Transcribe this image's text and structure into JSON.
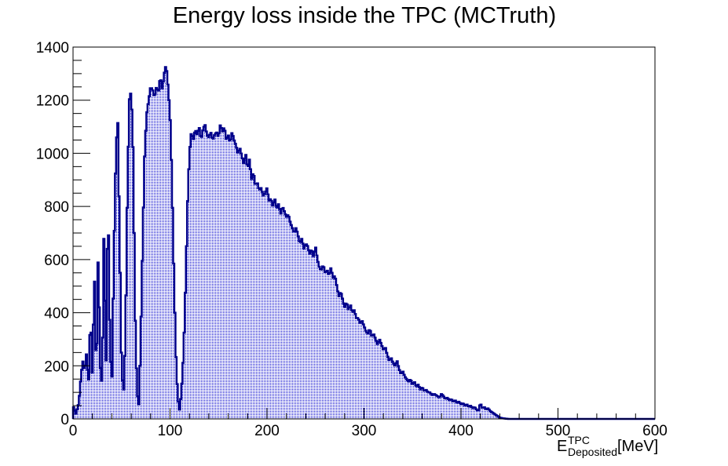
{
  "chart_data": {
    "type": "bar",
    "histogram": true,
    "title": "Energy loss inside the TPC (MCTruth)",
    "xlabel": {
      "main": "E",
      "superscript": "TPC",
      "subscript": "Deposited",
      "unit": "[MeV]"
    },
    "ylabel": "",
    "xlim": [
      0,
      600
    ],
    "ylim": [
      0,
      1400
    ],
    "x_ticks": [
      "0",
      "100",
      "200",
      "300",
      "400",
      "500",
      "600"
    ],
    "y_ticks": [
      "0",
      "200",
      "400",
      "600",
      "800",
      "1000",
      "1200",
      "1400"
    ],
    "bin_width": 1.2,
    "fill_pattern": "dotted",
    "grid": false,
    "legend": "none",
    "colors": {
      "line": "#00008b",
      "fill": "#0000cc"
    },
    "series": [
      {
        "points": [
          [
            0,
            50
          ],
          [
            3,
            20
          ],
          [
            6,
            60
          ],
          [
            8,
            150
          ],
          [
            10,
            220
          ],
          [
            12,
            180
          ],
          [
            14,
            250
          ],
          [
            16,
            120
          ],
          [
            18,
            400
          ],
          [
            20,
            150
          ],
          [
            22,
            560
          ],
          [
            24,
            130
          ],
          [
            26,
            640
          ],
          [
            28,
            200
          ],
          [
            30,
            120
          ],
          [
            32,
            740
          ],
          [
            34,
            150
          ],
          [
            36,
            850
          ],
          [
            38,
            320
          ],
          [
            40,
            110
          ],
          [
            42,
            600
          ],
          [
            44,
            960
          ],
          [
            46,
            1160
          ],
          [
            48,
            700
          ],
          [
            50,
            200
          ],
          [
            52,
            90
          ],
          [
            54,
            300
          ],
          [
            56,
            850
          ],
          [
            58,
            1200
          ],
          [
            60,
            1235
          ],
          [
            62,
            1000
          ],
          [
            64,
            400
          ],
          [
            66,
            100
          ],
          [
            68,
            50
          ],
          [
            70,
            350
          ],
          [
            72,
            700
          ],
          [
            74,
            1020
          ],
          [
            76,
            1150
          ],
          [
            78,
            1200
          ],
          [
            80,
            1250
          ],
          [
            82,
            1240
          ],
          [
            84,
            1210
          ],
          [
            86,
            1250
          ],
          [
            88,
            1230
          ],
          [
            90,
            1290
          ],
          [
            92,
            1240
          ],
          [
            94,
            1300
          ],
          [
            96,
            1335
          ],
          [
            98,
            1250
          ],
          [
            100,
            1150
          ],
          [
            102,
            900
          ],
          [
            104,
            550
          ],
          [
            106,
            250
          ],
          [
            108,
            80
          ],
          [
            110,
            30
          ],
          [
            112,
            120
          ],
          [
            114,
            250
          ],
          [
            116,
            500
          ],
          [
            118,
            800
          ],
          [
            120,
            1000
          ],
          [
            122,
            1080
          ],
          [
            124,
            1050
          ],
          [
            126,
            1090
          ],
          [
            128,
            1070
          ],
          [
            130,
            1100
          ],
          [
            132,
            1050
          ],
          [
            134,
            1090
          ],
          [
            136,
            1110
          ],
          [
            138,
            1070
          ],
          [
            140,
            1060
          ],
          [
            142,
            1080
          ],
          [
            144,
            1050
          ],
          [
            146,
            1070
          ],
          [
            148,
            1080
          ],
          [
            150,
            1060
          ],
          [
            152,
            1110
          ],
          [
            154,
            1080
          ],
          [
            156,
            1100
          ],
          [
            158,
            1050
          ],
          [
            160,
            1070
          ],
          [
            162,
            1040
          ],
          [
            164,
            1080
          ],
          [
            166,
            1050
          ],
          [
            168,
            1030
          ],
          [
            170,
            1000
          ],
          [
            172,
            1020
          ],
          [
            174,
            990
          ],
          [
            176,
            960
          ],
          [
            178,
            1000
          ],
          [
            180,
            940
          ],
          [
            182,
            980
          ],
          [
            184,
            900
          ],
          [
            186,
            930
          ],
          [
            188,
            880
          ],
          [
            190,
            890
          ],
          [
            192,
            860
          ],
          [
            194,
            870
          ],
          [
            196,
            840
          ],
          [
            198,
            850
          ],
          [
            200,
            870
          ],
          [
            202,
            820
          ],
          [
            204,
            830
          ],
          [
            206,
            800
          ],
          [
            208,
            830
          ],
          [
            210,
            790
          ],
          [
            212,
            810
          ],
          [
            214,
            770
          ],
          [
            216,
            800
          ],
          [
            218,
            780
          ],
          [
            220,
            760
          ],
          [
            222,
            770
          ],
          [
            224,
            740
          ],
          [
            226,
            720
          ],
          [
            228,
            700
          ],
          [
            230,
            720
          ],
          [
            232,
            690
          ],
          [
            234,
            660
          ],
          [
            236,
            680
          ],
          [
            238,
            640
          ],
          [
            240,
            660
          ],
          [
            242,
            650
          ],
          [
            244,
            620
          ],
          [
            246,
            640
          ],
          [
            248,
            610
          ],
          [
            250,
            650
          ],
          [
            252,
            600
          ],
          [
            254,
            570
          ],
          [
            256,
            560
          ],
          [
            258,
            580
          ],
          [
            260,
            550
          ],
          [
            262,
            560
          ],
          [
            264,
            540
          ],
          [
            266,
            570
          ],
          [
            268,
            530
          ],
          [
            270,
            540
          ],
          [
            272,
            500
          ],
          [
            274,
            460
          ],
          [
            276,
            480
          ],
          [
            278,
            450
          ],
          [
            280,
            420
          ],
          [
            282,
            440
          ],
          [
            284,
            410
          ],
          [
            286,
            430
          ],
          [
            288,
            400
          ],
          [
            290,
            410
          ],
          [
            292,
            380
          ],
          [
            294,
            380
          ],
          [
            296,
            360
          ],
          [
            298,
            370
          ],
          [
            300,
            350
          ],
          [
            302,
            330
          ],
          [
            304,
            320
          ],
          [
            306,
            340
          ],
          [
            308,
            310
          ],
          [
            310,
            320
          ],
          [
            312,
            300
          ],
          [
            314,
            280
          ],
          [
            316,
            300
          ],
          [
            318,
            280
          ],
          [
            320,
            260
          ],
          [
            322,
            270
          ],
          [
            324,
            240
          ],
          [
            326,
            220
          ],
          [
            328,
            230
          ],
          [
            330,
            210
          ],
          [
            332,
            200
          ],
          [
            334,
            220
          ],
          [
            336,
            190
          ],
          [
            338,
            170
          ],
          [
            340,
            180
          ],
          [
            342,
            160
          ],
          [
            344,
            150
          ],
          [
            346,
            140
          ],
          [
            348,
            150
          ],
          [
            350,
            130
          ],
          [
            352,
            140
          ],
          [
            354,
            120
          ],
          [
            356,
            130
          ],
          [
            358,
            110
          ],
          [
            360,
            120
          ],
          [
            362,
            105
          ],
          [
            364,
            110
          ],
          [
            366,
            100
          ],
          [
            368,
            100
          ],
          [
            370,
            90
          ],
          [
            372,
            95
          ],
          [
            374,
            90
          ],
          [
            376,
            85
          ],
          [
            378,
            80
          ],
          [
            380,
            95
          ],
          [
            382,
            85
          ],
          [
            384,
            75
          ],
          [
            386,
            80
          ],
          [
            388,
            70
          ],
          [
            390,
            75
          ],
          [
            392,
            65
          ],
          [
            394,
            70
          ],
          [
            396,
            60
          ],
          [
            398,
            65
          ],
          [
            400,
            55
          ],
          [
            402,
            60
          ],
          [
            404,
            50
          ],
          [
            406,
            55
          ],
          [
            408,
            45
          ],
          [
            410,
            50
          ],
          [
            412,
            40
          ],
          [
            414,
            45
          ],
          [
            416,
            35
          ],
          [
            418,
            30
          ],
          [
            420,
            60
          ],
          [
            422,
            40
          ],
          [
            424,
            45
          ],
          [
            426,
            35
          ],
          [
            428,
            40
          ],
          [
            430,
            30
          ],
          [
            432,
            25
          ],
          [
            434,
            20
          ],
          [
            436,
            15
          ],
          [
            438,
            10
          ],
          [
            440,
            5
          ],
          [
            442,
            3
          ],
          [
            444,
            2
          ],
          [
            446,
            1
          ],
          [
            450,
            0
          ],
          [
            600,
            0
          ]
        ]
      }
    ]
  }
}
